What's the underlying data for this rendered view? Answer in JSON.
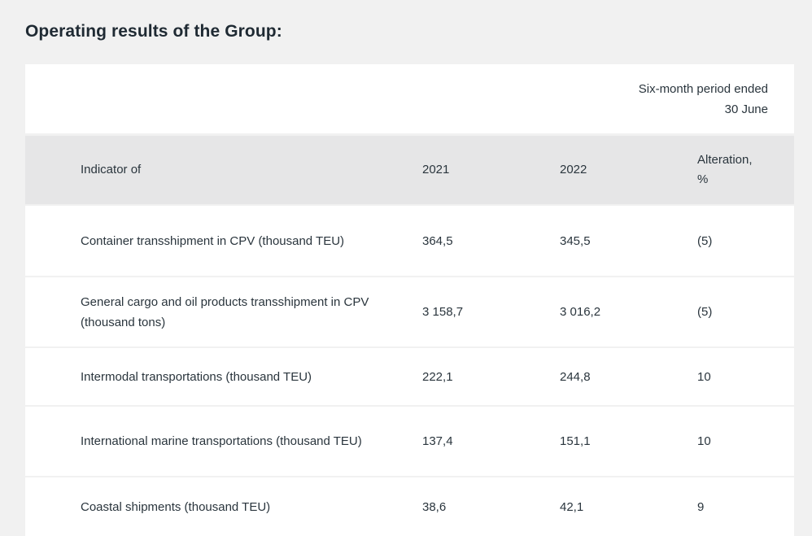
{
  "page": {
    "title": "Operating results of the Group:"
  },
  "table": {
    "period_line1": "Six-month period ended",
    "period_line2": "30 June",
    "headers": {
      "indicator": "Indicator of",
      "y2021": "2021",
      "y2022": "2022",
      "alteration_line1": "Alteration,",
      "alteration_line2": "%"
    },
    "rows": [
      {
        "indicator": "Container transshipment in CPV (thousand TEU)",
        "y2021": "364,5",
        "y2022": "345,5",
        "alteration": "(5)"
      },
      {
        "indicator": "General cargo and oil products transshipment in CPV (thousand tons)",
        "y2021": "3 158,7",
        "y2022": "3 016,2",
        "alteration": "(5)"
      },
      {
        "indicator": "Intermodal transportations (thousand TEU)",
        "y2021": "222,1",
        "y2022": "244,8",
        "alteration": "10"
      },
      {
        "indicator": "International marine transportations (thousand TEU)",
        "y2021": "137,4",
        "y2022": "151,1",
        "alteration": "10"
      },
      {
        "indicator": "Coastal shipments (thousand TEU)",
        "y2021": "38,6",
        "y2022": "42,1",
        "alteration": "9"
      }
    ]
  },
  "colors": {
    "page_background": "#f1f1f1",
    "header_background": "#e6e6e7",
    "row_background": "#ffffff",
    "text": "#2a353d"
  }
}
